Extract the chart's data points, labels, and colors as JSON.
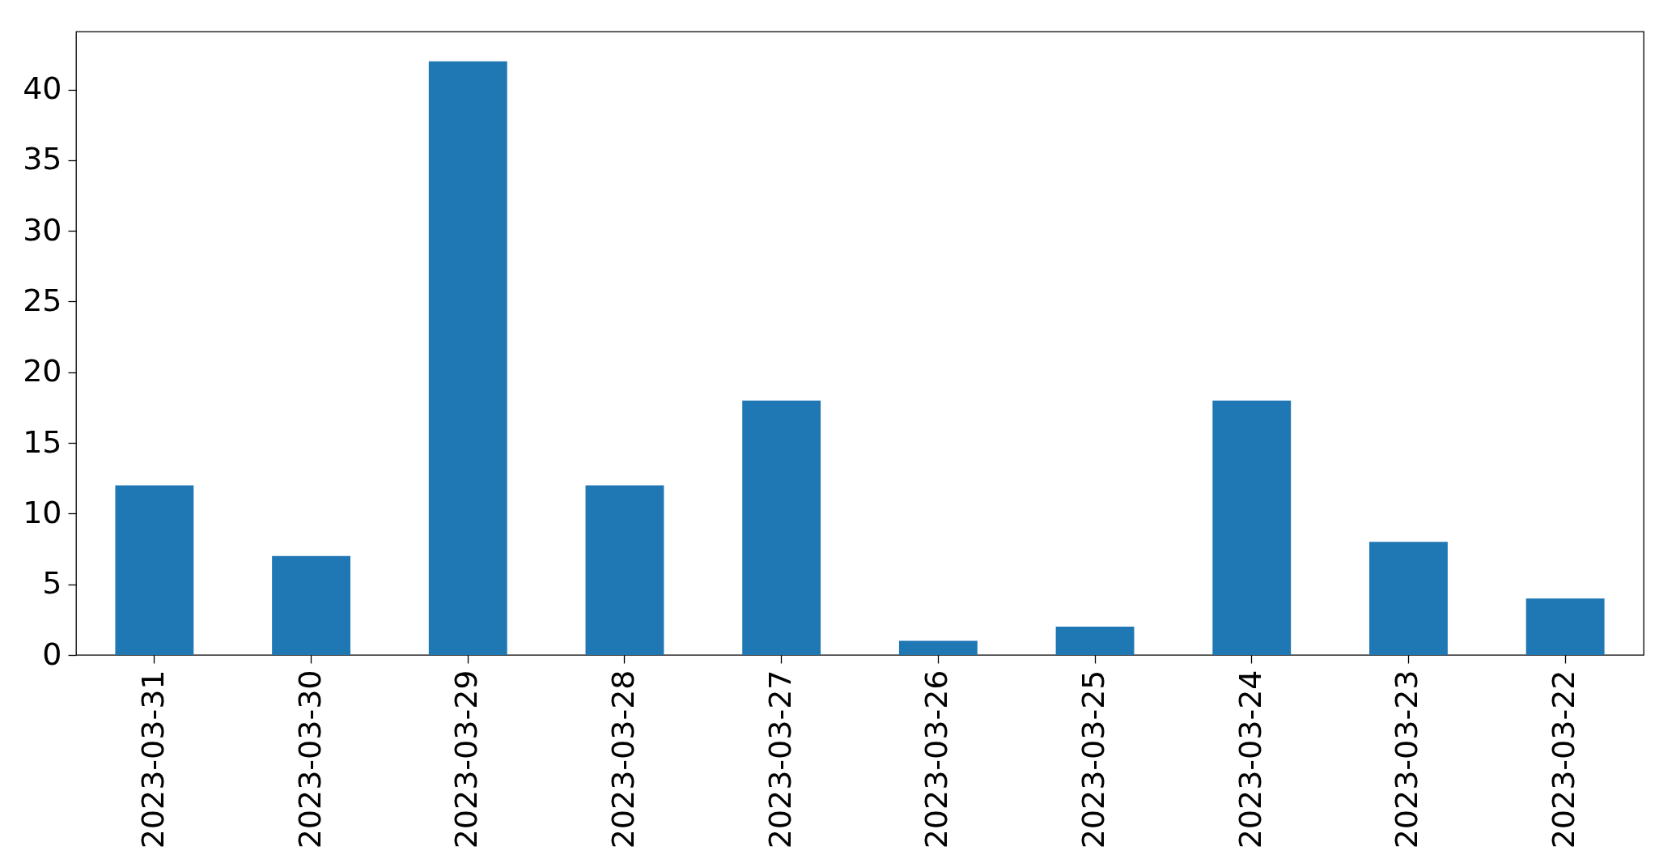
{
  "chart_data": {
    "type": "bar",
    "categories": [
      "2023-03-31",
      "2023-03-30",
      "2023-03-29",
      "2023-03-28",
      "2023-03-27",
      "2023-03-26",
      "2023-03-25",
      "2023-03-24",
      "2023-03-23",
      "2023-03-22"
    ],
    "values": [
      12,
      7,
      42,
      12,
      18,
      1,
      2,
      18,
      8,
      4
    ],
    "color": "#1f77b4",
    "ylim": [
      0,
      44.1
    ],
    "yticks": [
      0,
      5,
      10,
      15,
      20,
      25,
      30,
      35,
      40
    ]
  }
}
